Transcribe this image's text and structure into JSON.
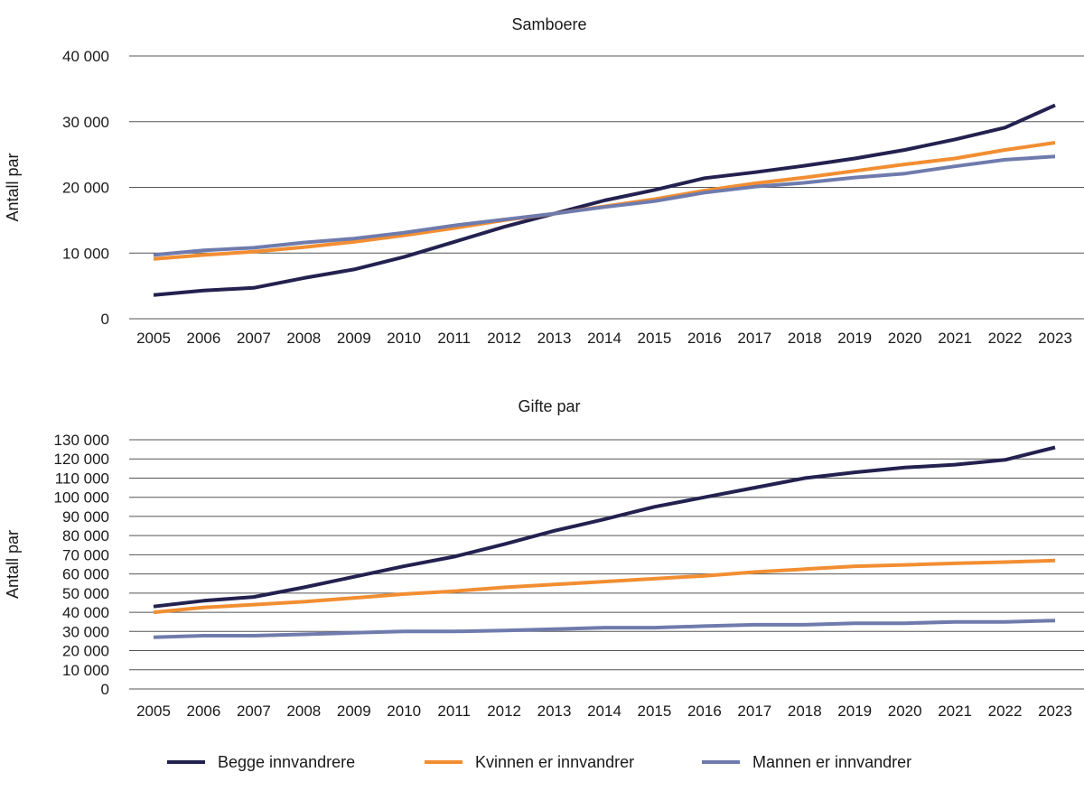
{
  "colors": {
    "begge": "#23214f",
    "kvinnen": "#f28e32",
    "mannen": "#6f7bad",
    "grid": "#555555"
  },
  "legend": [
    {
      "label": "Begge innvandrere",
      "color": "#23214f"
    },
    {
      "label": "Kvinnen er innvandrer",
      "color": "#f28e32"
    },
    {
      "label": "Mannen er innvandrer",
      "color": "#6f7bad"
    }
  ],
  "chart_data": [
    {
      "type": "line",
      "title": "Samboere",
      "ylabel": "Antall par",
      "xlabel": "",
      "ylim": [
        0,
        40000
      ],
      "yticks": [
        0,
        10000,
        20000,
        30000,
        40000
      ],
      "ytick_labels": [
        "0",
        "10 000",
        "20 000",
        "30 000",
        "40 000"
      ],
      "grid": true,
      "x": [
        "2005",
        "2006",
        "2007",
        "2008",
        "2009",
        "2010",
        "2011",
        "2012",
        "2013",
        "2014",
        "2015",
        "2016",
        "2017",
        "2018",
        "2019",
        "2020",
        "2021",
        "2022",
        "2023"
      ],
      "series": [
        {
          "name": "Begge innvandrere",
          "color": "#23214f",
          "values": [
            3600,
            4300,
            4700,
            6200,
            7500,
            9400,
            11700,
            14000,
            16000,
            18000,
            19600,
            21400,
            22300,
            23300,
            24400,
            25700,
            27300,
            29100,
            32500
          ]
        },
        {
          "name": "Kvinnen er innvandrer",
          "color": "#f28e32",
          "values": [
            9100,
            9700,
            10200,
            10900,
            11700,
            12700,
            13800,
            15000,
            16000,
            17100,
            18200,
            19500,
            20600,
            21500,
            22500,
            23500,
            24400,
            25700,
            26800
          ]
        },
        {
          "name": "Mannen er innvandrer",
          "color": "#6f7bad",
          "values": [
            9700,
            10400,
            10800,
            11600,
            12200,
            13100,
            14200,
            15100,
            16000,
            17000,
            17900,
            19200,
            20100,
            20700,
            21500,
            22100,
            23200,
            24200,
            24700
          ]
        }
      ]
    },
    {
      "type": "line",
      "title": "Gifte par",
      "ylabel": "Antall par",
      "xlabel": "",
      "ylim": [
        0,
        130000
      ],
      "yticks": [
        0,
        10000,
        20000,
        30000,
        40000,
        50000,
        60000,
        70000,
        80000,
        90000,
        100000,
        110000,
        120000,
        130000
      ],
      "ytick_labels": [
        "0",
        "10 000",
        "20 000",
        "30 000",
        "40 000",
        "50 000",
        "60 000",
        "70 000",
        "80 000",
        "90 000",
        "100 000",
        "110 000",
        "120 000",
        "130 000"
      ],
      "grid": true,
      "x": [
        "2005",
        "2006",
        "2007",
        "2008",
        "2009",
        "2010",
        "2011",
        "2012",
        "2013",
        "2014",
        "2015",
        "2016",
        "2017",
        "2018",
        "2019",
        "2020",
        "2021",
        "2022",
        "2023"
      ],
      "series": [
        {
          "name": "Begge innvandrere",
          "color": "#23214f",
          "values": [
            43000,
            46000,
            48000,
            53000,
            58500,
            64000,
            69000,
            75500,
            82500,
            88500,
            95000,
            100000,
            105000,
            110000,
            113000,
            115500,
            117000,
            119500,
            126000
          ]
        },
        {
          "name": "Kvinnen er innvandrer",
          "color": "#f28e32",
          "values": [
            40000,
            42500,
            44000,
            45500,
            47500,
            49500,
            51000,
            53000,
            54500,
            56000,
            57500,
            59000,
            61000,
            62500,
            64000,
            64700,
            65500,
            66200,
            67000
          ]
        },
        {
          "name": "Mannen er innvandrer",
          "color": "#6f7bad",
          "values": [
            27000,
            27800,
            27800,
            28500,
            29300,
            30000,
            30000,
            30500,
            31200,
            32000,
            32000,
            32800,
            33500,
            33500,
            34300,
            34300,
            35000,
            35000,
            35700
          ]
        }
      ]
    }
  ]
}
